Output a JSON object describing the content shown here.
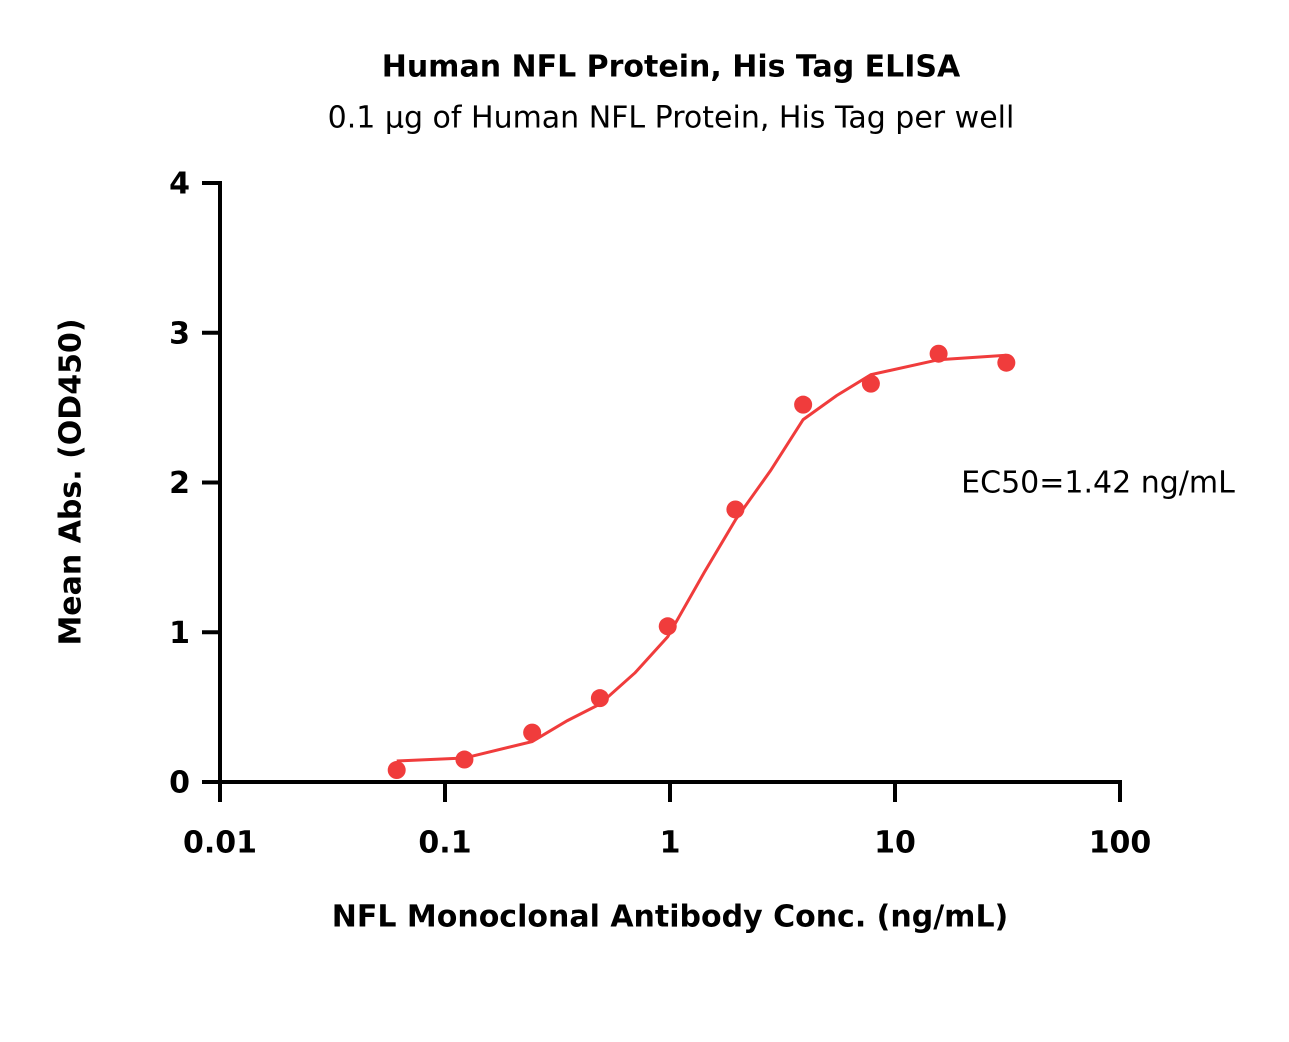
{
  "chart_data": {
    "type": "scatter",
    "title": "Human NFL Protein, His Tag ELISA",
    "subtitle": "0.1 μg of Human NFL Protein, His Tag per well",
    "x_label": "NFL Monoclonal Antibody Conc. (ng/mL)",
    "y_label": "Mean Abs. (OD450)",
    "annotation": "EC50=1.42 ng/mL",
    "x_scale": "log",
    "xlim": [
      0.01,
      100
    ],
    "xticks": [
      0.01,
      0.1,
      1,
      10,
      100
    ],
    "ylim": [
      0,
      4
    ],
    "yticks": [
      0,
      1,
      2,
      3,
      4
    ],
    "grid": false,
    "series": [
      {
        "color": "#f03c3c",
        "style": "points",
        "x": [
          0.061,
          0.122,
          0.244,
          0.488,
          0.977,
          1.953,
          3.906,
          7.813,
          15.625,
          31.25
        ],
        "values": [
          0.08,
          0.15,
          0.33,
          0.56,
          1.04,
          1.82,
          2.52,
          2.66,
          2.86,
          2.8
        ]
      },
      {
        "color": "#f03c3c",
        "style": "line",
        "x": [
          0.061,
          0.122,
          0.244,
          0.35,
          0.488,
          0.7,
          0.977,
          1.42,
          1.953,
          2.8,
          3.906,
          5.5,
          7.813,
          15.625,
          31.25
        ],
        "values": [
          0.14,
          0.16,
          0.27,
          0.41,
          0.52,
          0.73,
          0.97,
          1.4,
          1.75,
          2.08,
          2.42,
          2.58,
          2.72,
          2.82,
          2.85
        ]
      }
    ]
  }
}
